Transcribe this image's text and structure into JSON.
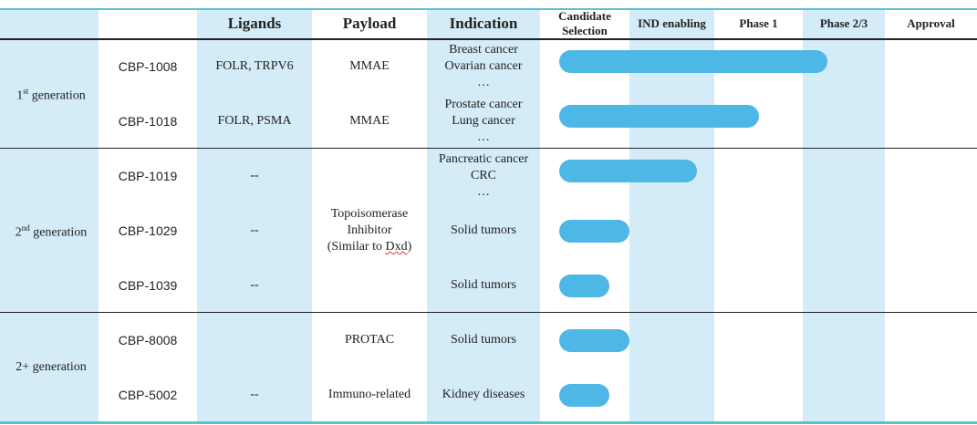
{
  "headers": {
    "ligands": "Ligands",
    "payload": "Payload",
    "indication": "Indication",
    "stages": [
      "Candidate Selection",
      "IND enabling",
      "Phase 1",
      "Phase 2/3",
      "Approval"
    ]
  },
  "generations": [
    {
      "num": "1",
      "sup": "st",
      "label": " generation"
    },
    {
      "num": "2",
      "sup": "nd",
      "label": " generation"
    },
    {
      "num": "",
      "sup": "",
      "label": "2+ generation"
    }
  ],
  "payload_topo": [
    "Topoisomerase",
    "Inhibitor",
    "(Similar to ",
    "Dxd",
    ")"
  ],
  "rows": [
    {
      "id": "CBP-1008",
      "ligands": "FOLR, TRPV6",
      "payload": "MMAE",
      "indication": [
        "Breast cancer",
        "Ovarian cancer",
        "…"
      ],
      "progress": 3.3
    },
    {
      "id": "CBP-1018",
      "ligands": "FOLR, PSMA",
      "payload": "MMAE",
      "indication": [
        "Prostate cancer",
        "Lung cancer",
        "…"
      ],
      "progress": 2.5
    },
    {
      "id": "CBP-1019",
      "ligands": "--",
      "payload": "",
      "indication": [
        "Pancreatic cancer",
        "CRC",
        "…"
      ],
      "progress": 1.8
    },
    {
      "id": "CBP-1029",
      "ligands": "--",
      "payload": "",
      "indication": [
        "Solid tumors"
      ],
      "progress": 1.0
    },
    {
      "id": "CBP-1039",
      "ligands": "--",
      "payload": "",
      "indication": [
        "Solid tumors"
      ],
      "progress": 0.72
    },
    {
      "id": "CBP-8008",
      "ligands": "",
      "payload": "PROTAC",
      "indication": [
        "Solid tumors"
      ],
      "progress": 1.0
    },
    {
      "id": "CBP-5002",
      "ligands": "--",
      "payload": "Immuno-related",
      "indication": [
        "Kidney diseases"
      ],
      "progress": 0.72
    }
  ],
  "colors": {
    "bar": "#4db7e6",
    "stripe": "#d3ecf7",
    "border": "#5bbfd6"
  }
}
